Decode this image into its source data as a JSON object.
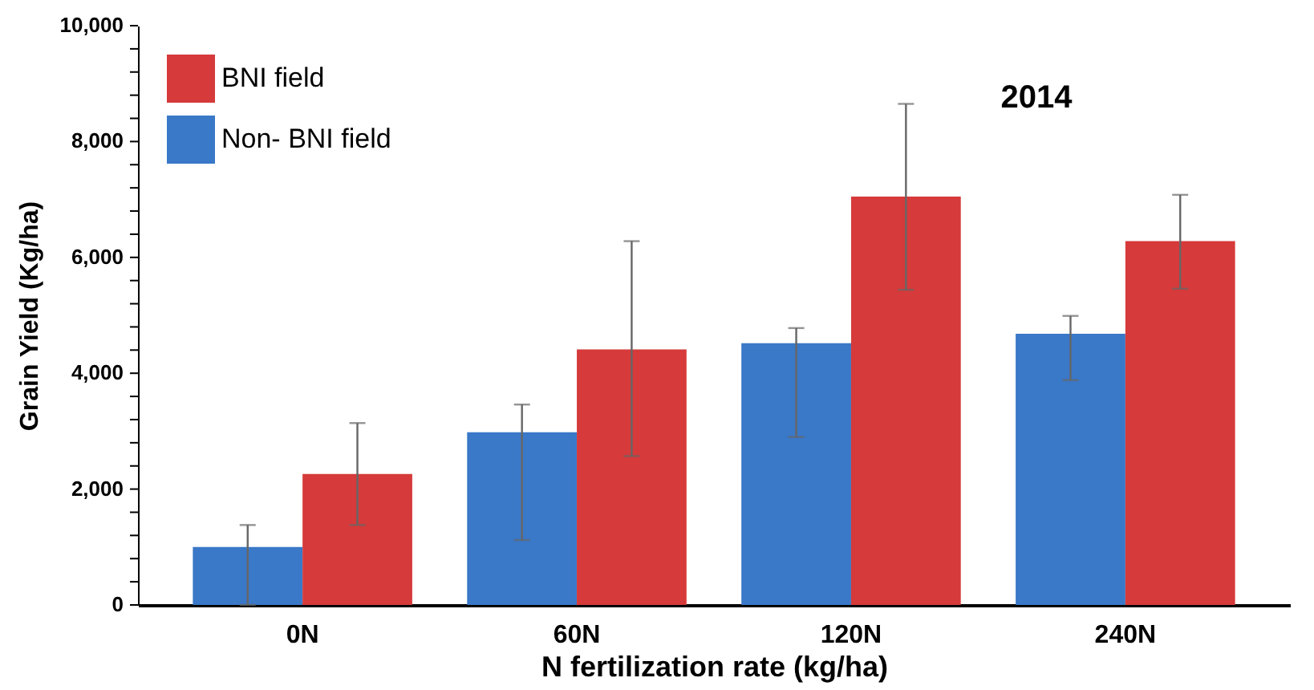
{
  "chart_data": {
    "type": "bar",
    "xlabel": "N fertilization rate (kg/ha)",
    "ylabel": "Grain Yield (Kg/ha)",
    "categories": [
      "0N",
      "60N",
      "120N",
      "240N"
    ],
    "series": [
      {
        "name": "Non- BNI field",
        "color": "#3a78c8",
        "values": [
          1000,
          2980,
          4520,
          4680
        ],
        "errors": [
          [
            0,
            1380
          ],
          [
            1120,
            3460
          ],
          [
            2900,
            4780
          ],
          [
            3880,
            4990
          ]
        ]
      },
      {
        "name": "BNI field",
        "color": "#d63a3a",
        "values": [
          2260,
          4410,
          7050,
          6280
        ],
        "errors": [
          [
            1380,
            3140
          ],
          [
            2570,
            6280
          ],
          [
            5440,
            8650
          ],
          [
            5460,
            7080
          ]
        ]
      }
    ],
    "ylim": [
      0,
      10000
    ],
    "yticks": [
      0,
      {
        "value": 400,
        "label": null
      },
      {
        "value": 800,
        "label": null
      },
      {
        "value": 1200,
        "label": null
      },
      {
        "value": 1600,
        "label": null
      },
      {
        "value": 2000,
        "label": "2,000"
      },
      {
        "value": 2400,
        "label": null
      },
      {
        "value": 2800,
        "label": null
      },
      {
        "value": 3200,
        "label": null
      },
      {
        "value": 3600,
        "label": null
      },
      {
        "value": 4000,
        "label": "4,000"
      },
      {
        "value": 4400,
        "label": null
      },
      {
        "value": 4800,
        "label": null
      },
      {
        "value": 5200,
        "label": null
      },
      {
        "value": 5600,
        "label": null
      },
      {
        "value": 6000,
        "label": "6,000"
      },
      {
        "value": 6400,
        "label": null
      },
      {
        "value": 6800,
        "label": null
      },
      {
        "value": 7200,
        "label": null
      },
      {
        "value": 7600,
        "label": null
      },
      {
        "value": 8000,
        "label": "8,000"
      },
      {
        "value": 8400,
        "label": null
      },
      {
        "value": 8800,
        "label": null
      },
      {
        "value": 9200,
        "label": null
      },
      {
        "value": 9600,
        "label": null
      },
      {
        "value": 10000,
        "label": "10,000"
      }
    ],
    "annotations": [
      "2014"
    ],
    "grid": false,
    "legend": "top left"
  }
}
